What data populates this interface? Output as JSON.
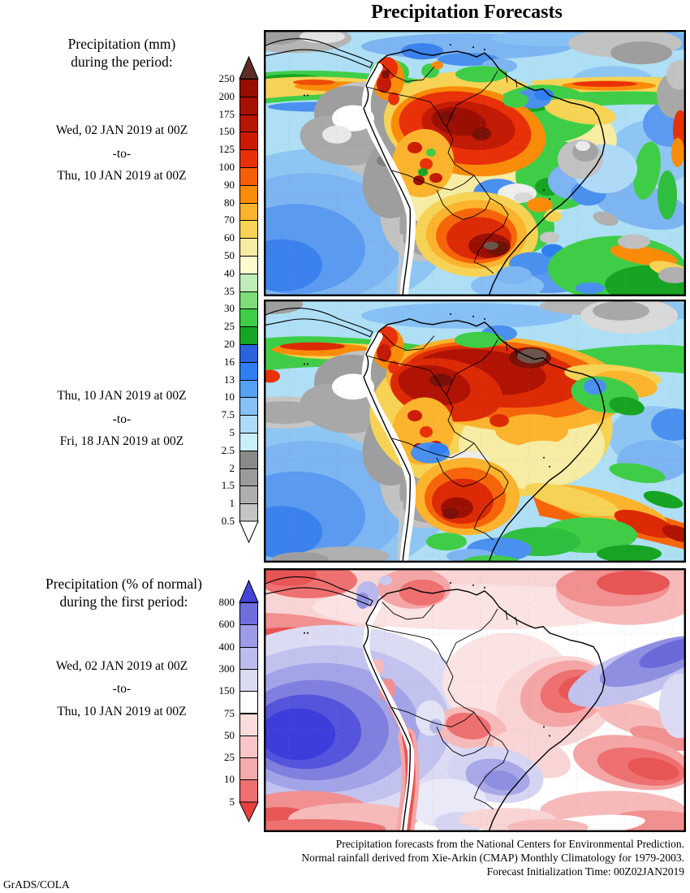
{
  "title": "Precipitation Forecasts",
  "panel1": {
    "header_line1": "Precipitation (mm)",
    "header_line2": "during the period:",
    "date_start": "Wed, 02 JAN 2019 at 00Z",
    "date_sep": "-to-",
    "date_end": "Thu, 10 JAN 2019 at 00Z"
  },
  "panel2": {
    "date_start": "Thu, 10 JAN 2019 at 00Z",
    "date_sep": "-to-",
    "date_end": "Fri, 18 JAN 2019 at 00Z"
  },
  "panel3": {
    "header_line1": "Precipitation (% of normal)",
    "header_line2": "during the first period:",
    "date_start": "Wed, 02 JAN 2019 at 00Z",
    "date_sep": "-to-",
    "date_end": "Thu, 10 JAN 2019 at 00Z"
  },
  "colorbar_mm": {
    "unit": "mm",
    "labels_top_to_bottom": [
      "250",
      "200",
      "175",
      "150",
      "125",
      "100",
      "90",
      "80",
      "70",
      "60",
      "50",
      "40",
      "35",
      "30",
      "25",
      "20",
      "16",
      "13",
      "10",
      "7.5",
      "5",
      "2.5",
      "2",
      "1.5",
      "1",
      "0.5"
    ],
    "segment_colors_top_to_bottom": [
      "#970d02",
      "#a61102",
      "#b81503",
      "#cb1a04",
      "#e83109",
      "#f75e08",
      "#fa8c0a",
      "#fcb32d",
      "#f6d355",
      "#f7eca4",
      "#fdfad0",
      "#c0ecba",
      "#7edd78",
      "#3fcd48",
      "#17a423",
      "#2a63da",
      "#2f7ff2",
      "#55a0f2",
      "#86c0f5",
      "#aedaf8",
      "#c9f0f8",
      "#898989",
      "#9b9b9b",
      "#aeaeae",
      "#c4c4c4"
    ],
    "top_arrow_color": "#5e2d25",
    "bottom_arrow_color": "#ffffff"
  },
  "colorbar_pct": {
    "unit": "% of normal",
    "labels_top_to_bottom": [
      "800",
      "600",
      "400",
      "300",
      "150",
      "75",
      "50",
      "25",
      "10",
      "5"
    ],
    "segment_colors_top_to_bottom": [
      "#6e6edc",
      "#9b9be6",
      "#bcbcee",
      "#dbdbf4",
      "#ffffff",
      "#fbdcdc",
      "#f8c6c6",
      "#f4abab",
      "#ee6f6f"
    ],
    "top_arrow_color": "#4444dd",
    "bottom_arrow_color": "#e84040"
  },
  "map_palette": {
    "ocean_light": "#aedff5",
    "gray_dry": "#9e9e9e",
    "heavy_rain_red": "#cb1a04",
    "normal_white": "#ffffff",
    "above_normal_blue": "#4444dd",
    "below_normal_red": "#ee6f6f"
  },
  "footer": {
    "line1": "Precipitation forecasts from the National Centers for Environmental Prediction.",
    "line2": "Normal rainfall derived from Xie-Arkin (CMAP) Monthly Climatology for 1979-2003.",
    "line3": "Forecast Initialization Time: 00Z02JAN2019"
  },
  "credit": "GrADS/COLA"
}
